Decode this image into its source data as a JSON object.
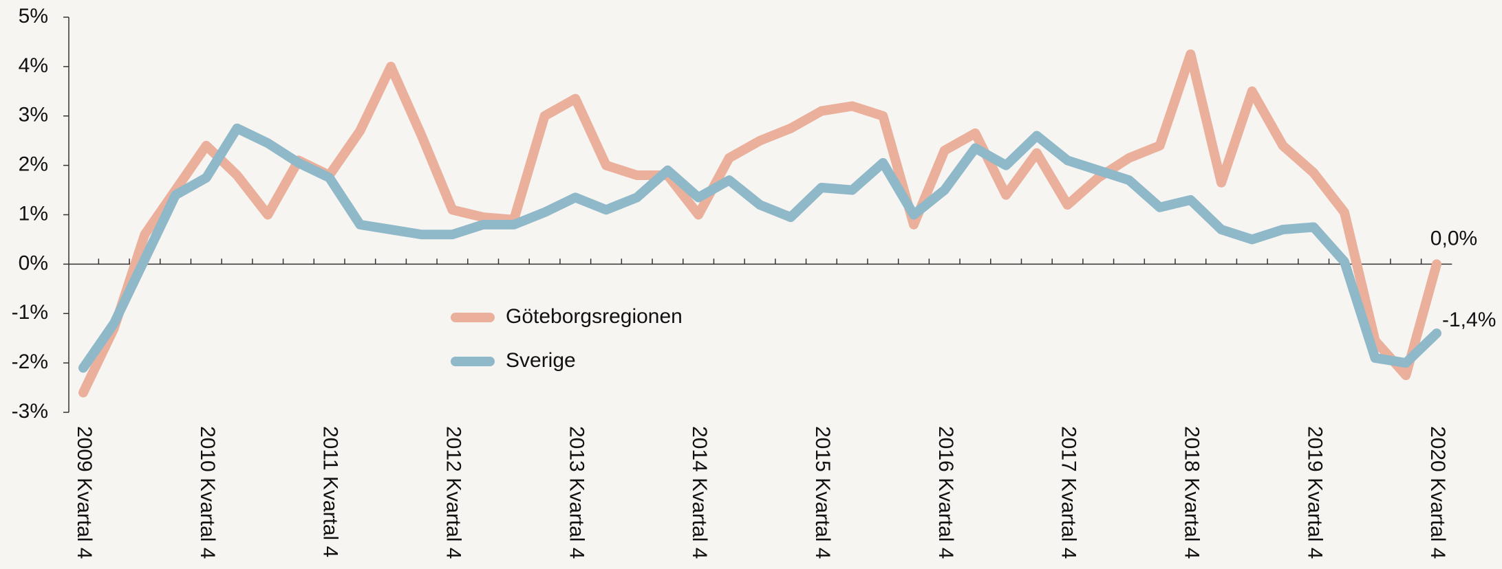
{
  "chart_data": {
    "type": "line",
    "categories": [
      "2009 Kvartal 4",
      null,
      null,
      null,
      "2010 Kvartal 4",
      null,
      null,
      null,
      "2011 Kvartal 4",
      null,
      null,
      null,
      "2012 Kvartal 4",
      null,
      null,
      null,
      "2013 Kvartal 4",
      null,
      null,
      null,
      "2014 Kvartal 4",
      null,
      null,
      null,
      "2015 Kvartal 4",
      null,
      null,
      null,
      "2016 Kvartal 4",
      null,
      null,
      null,
      "2017 Kvartal 4",
      null,
      null,
      null,
      "2018 Kvartal 4",
      null,
      null,
      null,
      "2019 Kvartal 4",
      null,
      null,
      null,
      "2020 Kvartal 4"
    ],
    "series": [
      {
        "name": "Göteborgsregionen",
        "color": "#ebb09c",
        "values": [
          -2.6,
          -1.3,
          0.6,
          1.5,
          2.4,
          1.8,
          1.0,
          2.1,
          1.8,
          2.7,
          4.0,
          2.6,
          1.1,
          0.95,
          0.9,
          3.0,
          3.35,
          2.0,
          1.8,
          1.8,
          1.0,
          2.15,
          2.5,
          2.75,
          3.1,
          3.2,
          3.0,
          0.8,
          2.3,
          2.65,
          1.4,
          2.25,
          1.2,
          1.75,
          2.15,
          2.4,
          4.25,
          1.65,
          3.5,
          2.4,
          1.85,
          1.05,
          -1.55,
          -2.25,
          0.0
        ],
        "value_labels": [
          null,
          null,
          null,
          null,
          null,
          null,
          null,
          null,
          null,
          null,
          null,
          null,
          null,
          null,
          null,
          null,
          null,
          null,
          null,
          null,
          null,
          null,
          null,
          null,
          null,
          null,
          null,
          null,
          null,
          null,
          null,
          null,
          null,
          null,
          null,
          null,
          null,
          null,
          null,
          null,
          null,
          null,
          null,
          null,
          "0,0%"
        ]
      },
      {
        "name": "Sverige",
        "color": "#8fb8c9",
        "values": [
          -2.1,
          -1.2,
          0.1,
          1.4,
          1.75,
          2.75,
          2.45,
          2.05,
          1.75,
          0.8,
          0.7,
          0.6,
          0.6,
          0.8,
          0.8,
          1.05,
          1.35,
          1.1,
          1.35,
          1.9,
          1.35,
          1.7,
          1.2,
          0.95,
          1.55,
          1.5,
          2.05,
          1.0,
          1.5,
          2.35,
          2.0,
          2.6,
          2.1,
          1.9,
          1.7,
          1.15,
          1.3,
          0.7,
          0.5,
          0.7,
          0.75,
          0.05,
          -1.9,
          -2.0,
          -1.4
        ],
        "value_labels": [
          null,
          null,
          null,
          null,
          null,
          null,
          null,
          null,
          null,
          null,
          null,
          null,
          null,
          null,
          null,
          null,
          null,
          null,
          null,
          null,
          null,
          null,
          null,
          null,
          null,
          null,
          null,
          null,
          null,
          null,
          null,
          null,
          null,
          null,
          null,
          null,
          null,
          null,
          null,
          null,
          null,
          null,
          null,
          null,
          "-1,4%"
        ]
      }
    ],
    "ylim": [
      -3,
      5
    ],
    "yticks": [
      {
        "value": -3,
        "label": "-3%"
      },
      {
        "value": -2,
        "label": "-2%"
      },
      {
        "value": -1,
        "label": "-1%"
      },
      {
        "value": 0,
        "label": "0%"
      },
      {
        "value": 1,
        "label": "1%"
      },
      {
        "value": 2,
        "label": "2%"
      },
      {
        "value": 3,
        "label": "3%"
      },
      {
        "value": 4,
        "label": "4%"
      },
      {
        "value": 5,
        "label": "5%"
      }
    ],
    "grid": false
  }
}
